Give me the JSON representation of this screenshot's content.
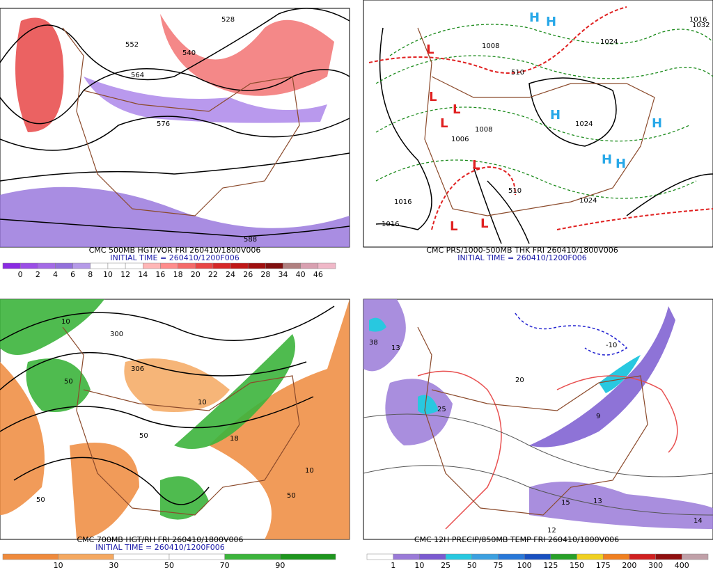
{
  "panels": [
    {
      "title": "CMC 500MB HGT/VOR FRI 260410/1800V006",
      "subtitle": "INITIAL TIME = 260410/1200F006",
      "map_labels": [
        "528",
        "552",
        "540",
        "564",
        "576",
        "588"
      ],
      "legend": {
        "labels": [
          "0",
          "2",
          "4",
          "6",
          "8",
          "10",
          "12",
          "14",
          "16",
          "18",
          "20",
          "22",
          "24",
          "26",
          "28",
          "34",
          "40",
          "46"
        ],
        "colors": [
          "#8a2be2",
          "#9b4ee6",
          "#a46ae6",
          "#9370db",
          "#b59ae8",
          "#ffffff",
          "#ffffff",
          "#ffffff",
          "#ffb6b6",
          "#ff8c8c",
          "#f46a6a",
          "#e84646",
          "#d62828",
          "#c01818",
          "#a01010",
          "#801010",
          "#b08080",
          "#d8a0b0",
          "#f0b8c8"
        ]
      }
    },
    {
      "title": "CMC PRS/1000-500MB THK FRI 260410/1800V006",
      "subtitle": "INITIAL TIME = 260410/1200F006",
      "map_labels": [
        "1016",
        "1024",
        "1032",
        "1008",
        "1024",
        "1016",
        "1016",
        "1024",
        "510",
        "510",
        "1006",
        "1008"
      ],
      "symbols": [
        "H",
        "H",
        "H",
        "H",
        "H",
        "H",
        "L",
        "L",
        "L",
        "L",
        "L",
        "L",
        "L"
      ]
    },
    {
      "title": "CMC 700MB HGT/RH FRI 260410/1800V006",
      "subtitle": "INITIAL TIME = 260410/1200F006",
      "map_labels": [
        "300",
        "306",
        "10",
        "50",
        "50",
        "10",
        "50",
        "10",
        "50",
        "18"
      ],
      "legend": {
        "labels": [
          "10",
          "30",
          "50",
          "70",
          "90"
        ],
        "colors": [
          "#ef8a3c",
          "#f4a860",
          "#ffffff",
          "#ffffff",
          "#3cb43c",
          "#1e961e"
        ]
      }
    },
    {
      "title": "CMC 12H PRECIP/850MB TEMP FRI 260410/1800V006",
      "subtitle": "",
      "map_labels": [
        "38",
        "13",
        "-10",
        "25",
        "15",
        "13",
        "12",
        "14",
        "9",
        "20"
      ],
      "legend": {
        "labels": [
          "1",
          "10",
          "25",
          "50",
          "75",
          "100",
          "125",
          "150",
          "175",
          "200",
          "300",
          "400"
        ],
        "colors": [
          "#ffffff",
          "#9a7ad8",
          "#7a5ad0",
          "#28c8e0",
          "#3ca0e0",
          "#2878d8",
          "#1850c0",
          "#28a028",
          "#f0d020",
          "#f08020",
          "#d02020",
          "#901010",
          "#c0a0a8"
        ]
      }
    }
  ]
}
